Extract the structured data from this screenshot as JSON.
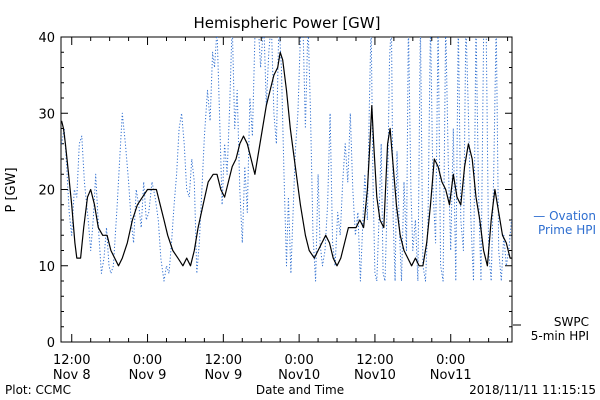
{
  "chart_data": {
    "type": "line",
    "title": "Hemispheric Power [GW]",
    "ylabel": "P [GW]",
    "xlabel": "Date and Time",
    "ylim": [
      0,
      40
    ],
    "yticks": [
      0,
      10,
      20,
      30,
      40
    ],
    "xlim_hours": [
      10.3,
      81.7
    ],
    "xticks": [
      {
        "hour": 12,
        "line1": "12:00",
        "line2": "Nov 8"
      },
      {
        "hour": 24,
        "line1": "0:00",
        "line2": "Nov 9"
      },
      {
        "hour": 36,
        "line1": "12:00",
        "line2": "Nov 9"
      },
      {
        "hour": 48,
        "line1": "0:00",
        "line2": "Nov10"
      },
      {
        "hour": 60,
        "line1": "12:00",
        "line2": "Nov10"
      },
      {
        "hour": 72,
        "line1": "0:00",
        "line2": "Nov11"
      }
    ],
    "grid": false,
    "legend_placement": "right",
    "series": [
      {
        "name": "SWPC 5-min HPI",
        "legend_line1": "SWPC",
        "legend_line2": "5-min HPI",
        "color": "#000000",
        "style": "solid",
        "points": [
          [
            10.4,
            29
          ],
          [
            10.7,
            28
          ],
          [
            11.0,
            26
          ],
          [
            11.5,
            22
          ],
          [
            12.0,
            18
          ],
          [
            12.5,
            13
          ],
          [
            12.8,
            11
          ],
          [
            13.4,
            11
          ],
          [
            13.9,
            15
          ],
          [
            14.5,
            19
          ],
          [
            15.0,
            20
          ],
          [
            15.6,
            18
          ],
          [
            16.2,
            15
          ],
          [
            16.9,
            14
          ],
          [
            17.6,
            14
          ],
          [
            18.2,
            12
          ],
          [
            18.8,
            11
          ],
          [
            19.4,
            10
          ],
          [
            20.0,
            11
          ],
          [
            20.8,
            13
          ],
          [
            21.6,
            16
          ],
          [
            22.4,
            18
          ],
          [
            23.2,
            19
          ],
          [
            24.0,
            20
          ],
          [
            24.8,
            20
          ],
          [
            25.4,
            20
          ],
          [
            26.0,
            18
          ],
          [
            26.6,
            16
          ],
          [
            27.2,
            14
          ],
          [
            28.0,
            12
          ],
          [
            28.8,
            11
          ],
          [
            29.6,
            10
          ],
          [
            30.2,
            11
          ],
          [
            30.8,
            10
          ],
          [
            31.4,
            12
          ],
          [
            32.0,
            15
          ],
          [
            32.8,
            18
          ],
          [
            33.6,
            21
          ],
          [
            34.4,
            22
          ],
          [
            35.0,
            22
          ],
          [
            35.6,
            20
          ],
          [
            36.2,
            19
          ],
          [
            36.8,
            21
          ],
          [
            37.4,
            23
          ],
          [
            38.0,
            24
          ],
          [
            38.6,
            26
          ],
          [
            39.2,
            27
          ],
          [
            39.8,
            26
          ],
          [
            40.4,
            24
          ],
          [
            41.0,
            22
          ],
          [
            41.6,
            25
          ],
          [
            42.2,
            28
          ],
          [
            42.8,
            31
          ],
          [
            43.4,
            33
          ],
          [
            44.0,
            35
          ],
          [
            44.6,
            36
          ],
          [
            45.0,
            38
          ],
          [
            45.4,
            37
          ],
          [
            46.0,
            33
          ],
          [
            46.6,
            28
          ],
          [
            47.4,
            23
          ],
          [
            48.2,
            18
          ],
          [
            49.0,
            14
          ],
          [
            49.6,
            12
          ],
          [
            50.4,
            11
          ],
          [
            51.0,
            12
          ],
          [
            51.6,
            13
          ],
          [
            52.2,
            14
          ],
          [
            52.8,
            13
          ],
          [
            53.4,
            11
          ],
          [
            54.0,
            10
          ],
          [
            54.6,
            11
          ],
          [
            55.2,
            13
          ],
          [
            55.8,
            15
          ],
          [
            56.4,
            15
          ],
          [
            57.0,
            15
          ],
          [
            57.6,
            16
          ],
          [
            58.2,
            15
          ],
          [
            58.8,
            20
          ],
          [
            59.2,
            26
          ],
          [
            59.5,
            31
          ],
          [
            59.8,
            26
          ],
          [
            60.3,
            19
          ],
          [
            60.8,
            16
          ],
          [
            61.4,
            15
          ],
          [
            62.0,
            26
          ],
          [
            62.4,
            28
          ],
          [
            62.8,
            24
          ],
          [
            63.4,
            18
          ],
          [
            64.0,
            14
          ],
          [
            64.6,
            12
          ],
          [
            65.2,
            11
          ],
          [
            65.8,
            10
          ],
          [
            66.4,
            11
          ],
          [
            67.0,
            10
          ],
          [
            67.6,
            10
          ],
          [
            68.2,
            13
          ],
          [
            68.8,
            18
          ],
          [
            69.4,
            24
          ],
          [
            70.0,
            23
          ],
          [
            70.6,
            21
          ],
          [
            71.2,
            20
          ],
          [
            71.8,
            18
          ],
          [
            72.4,
            22
          ],
          [
            73.0,
            19
          ],
          [
            73.6,
            18
          ],
          [
            74.2,
            23
          ],
          [
            74.8,
            26
          ],
          [
            75.4,
            24
          ],
          [
            76.0,
            19
          ],
          [
            76.6,
            16
          ],
          [
            77.2,
            12
          ],
          [
            77.8,
            10
          ],
          [
            78.4,
            16
          ],
          [
            79.0,
            20
          ],
          [
            79.6,
            17
          ],
          [
            80.2,
            14
          ],
          [
            80.8,
            13
          ],
          [
            81.4,
            11
          ],
          [
            81.7,
            11
          ]
        ]
      },
      {
        "name": "Ovation Prime HPI",
        "legend_line1": "— Ovation",
        "legend_line2": "Prime HPI",
        "color": "#2f6fd0",
        "style": "dotted",
        "points": [
          [
            10.4,
            26
          ],
          [
            10.8,
            28
          ],
          [
            11.2,
            23
          ],
          [
            11.6,
            17
          ],
          [
            12.0,
            14
          ],
          [
            12.4,
            20
          ],
          [
            12.8,
            19
          ],
          [
            13.2,
            26
          ],
          [
            13.6,
            27
          ],
          [
            14.0,
            21
          ],
          [
            14.6,
            16
          ],
          [
            15.0,
            12
          ],
          [
            15.4,
            16
          ],
          [
            15.8,
            22
          ],
          [
            16.3,
            14
          ],
          [
            16.7,
            9
          ],
          [
            17.1,
            11
          ],
          [
            17.5,
            15
          ],
          [
            17.9,
            10
          ],
          [
            18.2,
            9
          ],
          [
            18.6,
            10
          ],
          [
            19.2,
            18
          ],
          [
            19.6,
            24
          ],
          [
            20.0,
            30
          ],
          [
            20.5,
            26
          ],
          [
            21.0,
            21
          ],
          [
            21.4,
            16
          ],
          [
            21.8,
            13
          ],
          [
            22.2,
            20
          ],
          [
            22.6,
            18
          ],
          [
            23.0,
            15
          ],
          [
            23.4,
            21
          ],
          [
            23.8,
            16
          ],
          [
            24.2,
            17
          ],
          [
            24.7,
            21
          ],
          [
            25.2,
            19
          ],
          [
            25.7,
            16
          ],
          [
            26.1,
            11
          ],
          [
            26.6,
            8
          ],
          [
            27.0,
            10
          ],
          [
            27.4,
            9
          ],
          [
            27.8,
            13
          ],
          [
            28.2,
            18
          ],
          [
            28.6,
            22
          ],
          [
            29.0,
            28
          ],
          [
            29.4,
            30
          ],
          [
            29.8,
            26
          ],
          [
            30.2,
            20
          ],
          [
            30.6,
            19
          ],
          [
            31.0,
            24
          ],
          [
            31.4,
            21
          ],
          [
            31.8,
            9
          ],
          [
            32.2,
            13
          ],
          [
            32.6,
            20
          ],
          [
            33.0,
            27
          ],
          [
            33.5,
            33
          ],
          [
            33.9,
            29
          ],
          [
            34.3,
            38
          ],
          [
            34.6,
            36
          ],
          [
            35.0,
            41
          ],
          [
            35.4,
            30
          ],
          [
            35.8,
            18
          ],
          [
            36.2,
            26
          ],
          [
            36.6,
            22
          ],
          [
            37.0,
            31
          ],
          [
            37.4,
            42
          ],
          [
            37.8,
            28
          ],
          [
            38.2,
            33
          ],
          [
            38.6,
            20
          ],
          [
            39.0,
            13
          ],
          [
            39.4,
            23
          ],
          [
            39.8,
            17
          ],
          [
            40.2,
            32
          ],
          [
            40.6,
            27
          ],
          [
            41.0,
            40
          ],
          [
            41.5,
            42
          ],
          [
            41.9,
            36
          ],
          [
            42.4,
            42
          ],
          [
            42.8,
            31
          ],
          [
            43.2,
            38
          ],
          [
            43.6,
            42
          ],
          [
            44.0,
            30
          ],
          [
            44.4,
            26
          ],
          [
            44.8,
            42
          ],
          [
            45.2,
            36
          ],
          [
            45.6,
            22
          ],
          [
            46.0,
            10
          ],
          [
            46.3,
            19
          ],
          [
            46.7,
            9
          ],
          [
            47.0,
            16
          ],
          [
            47.4,
            25
          ],
          [
            47.8,
            30
          ],
          [
            48.2,
            40
          ],
          [
            48.6,
            42
          ],
          [
            49.0,
            28
          ],
          [
            49.4,
            42
          ],
          [
            49.8,
            30
          ],
          [
            50.2,
            14
          ],
          [
            50.6,
            8
          ],
          [
            51.0,
            22
          ],
          [
            51.3,
            13
          ],
          [
            51.7,
            10
          ],
          [
            52.1,
            12
          ],
          [
            52.5,
            18
          ],
          [
            52.9,
            30
          ],
          [
            53.3,
            13
          ],
          [
            53.7,
            10
          ],
          [
            54.1,
            17
          ],
          [
            54.5,
            14
          ],
          [
            54.9,
            21
          ],
          [
            55.3,
            26
          ],
          [
            55.7,
            21
          ],
          [
            56.1,
            30
          ],
          [
            56.5,
            20
          ],
          [
            56.9,
            14
          ],
          [
            57.3,
            17
          ],
          [
            57.7,
            8
          ],
          [
            58.0,
            14
          ],
          [
            58.4,
            22
          ],
          [
            58.8,
            16
          ],
          [
            59.1,
            30
          ],
          [
            59.4,
            42
          ],
          [
            59.7,
            21
          ],
          [
            60.0,
            9
          ],
          [
            60.3,
            8
          ],
          [
            60.6,
            15
          ],
          [
            61.0,
            26
          ],
          [
            61.3,
            9
          ],
          [
            61.6,
            8
          ],
          [
            62.0,
            20
          ],
          [
            62.3,
            37
          ],
          [
            62.6,
            42
          ],
          [
            62.9,
            16
          ],
          [
            63.2,
            8
          ],
          [
            63.5,
            25
          ],
          [
            63.9,
            14
          ],
          [
            64.2,
            8
          ],
          [
            64.6,
            21
          ],
          [
            65.0,
            12
          ],
          [
            65.3,
            42
          ],
          [
            65.7,
            20
          ],
          [
            66.0,
            12
          ],
          [
            66.4,
            16
          ],
          [
            66.8,
            8
          ],
          [
            67.2,
            42
          ],
          [
            67.6,
            10
          ],
          [
            68.0,
            8
          ],
          [
            68.4,
            16
          ],
          [
            68.8,
            42
          ],
          [
            69.2,
            20
          ],
          [
            69.6,
            13
          ],
          [
            70.0,
            42
          ],
          [
            70.4,
            10
          ],
          [
            70.8,
            8
          ],
          [
            71.2,
            42
          ],
          [
            71.6,
            24
          ],
          [
            72.0,
            12
          ],
          [
            72.4,
            28
          ],
          [
            72.8,
            8
          ],
          [
            73.2,
            42
          ],
          [
            73.6,
            16
          ],
          [
            74.0,
            12
          ],
          [
            74.4,
            42
          ],
          [
            74.8,
            30
          ],
          [
            75.2,
            16
          ],
          [
            75.6,
            8
          ],
          [
            76.0,
            42
          ],
          [
            76.4,
            20
          ],
          [
            76.8,
            8
          ],
          [
            77.2,
            40
          ],
          [
            77.6,
            42
          ],
          [
            78.0,
            12
          ],
          [
            78.4,
            8
          ],
          [
            78.8,
            22
          ],
          [
            79.2,
            42
          ],
          [
            79.6,
            12
          ],
          [
            80.0,
            8
          ],
          [
            80.4,
            14
          ],
          [
            80.8,
            10
          ],
          [
            81.2,
            12
          ],
          [
            81.6,
            16
          ]
        ]
      }
    ],
    "footer_left": "Plot: CCMC",
    "footer_right": "2018/11/11 11:15:15"
  }
}
